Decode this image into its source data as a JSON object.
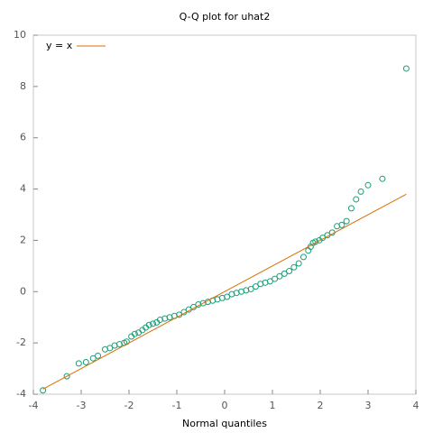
{
  "chart_data": {
    "type": "scatter",
    "title": "Q-Q plot for uhat2",
    "xlabel": "Normal quantiles",
    "xlim": [
      -4,
      4
    ],
    "xticks": [
      -4,
      -3,
      -2,
      -1,
      0,
      1,
      2,
      3,
      4
    ],
    "ylim": [
      -4,
      10
    ],
    "yticks": [
      -4,
      -2,
      0,
      2,
      4,
      6,
      8,
      10
    ],
    "legend": "upper left",
    "series": [
      {
        "color": "#1b9e77",
        "style": "points",
        "x": [
          -3.8,
          -3.3,
          -3.05,
          -2.9,
          -2.75,
          -2.65,
          -2.5,
          -2.4,
          -2.3,
          -2.2,
          -2.1,
          -2.05,
          -1.95,
          -1.88,
          -1.8,
          -1.72,
          -1.65,
          -1.58,
          -1.5,
          -1.42,
          -1.35,
          -1.25,
          -1.15,
          -1.05,
          -0.95,
          -0.85,
          -0.75,
          -0.65,
          -0.55,
          -0.45,
          -0.35,
          -0.25,
          -0.15,
          -0.05,
          0.05,
          0.15,
          0.25,
          0.35,
          0.45,
          0.55,
          0.65,
          0.75,
          0.85,
          0.95,
          1.05,
          1.15,
          1.25,
          1.35,
          1.45,
          1.55,
          1.65,
          1.75,
          1.8,
          1.85,
          1.9,
          1.98,
          2.05,
          2.15,
          2.25,
          2.35,
          2.45,
          2.55,
          2.65,
          2.75,
          2.85,
          3.0,
          3.3,
          3.8
        ],
        "values": [
          -3.85,
          -3.3,
          -2.8,
          -2.75,
          -2.6,
          -2.5,
          -2.25,
          -2.2,
          -2.1,
          -2.05,
          -2.0,
          -1.95,
          -1.75,
          -1.65,
          -1.6,
          -1.5,
          -1.4,
          -1.3,
          -1.25,
          -1.2,
          -1.1,
          -1.05,
          -1.0,
          -0.95,
          -0.9,
          -0.8,
          -0.7,
          -0.6,
          -0.5,
          -0.45,
          -0.4,
          -0.35,
          -0.3,
          -0.25,
          -0.2,
          -0.1,
          -0.05,
          0.0,
          0.05,
          0.1,
          0.2,
          0.3,
          0.35,
          0.4,
          0.5,
          0.6,
          0.7,
          0.8,
          0.95,
          1.1,
          1.35,
          1.6,
          1.75,
          1.9,
          1.95,
          2.0,
          2.1,
          2.2,
          2.3,
          2.55,
          2.6,
          2.75,
          3.25,
          3.6,
          3.9,
          4.15,
          4.4,
          8.7
        ]
      },
      {
        "name": "y = x",
        "color": "#d96f00",
        "style": "line",
        "x": [
          -3.8,
          3.8
        ],
        "values": [
          -3.8,
          3.8
        ]
      }
    ]
  }
}
